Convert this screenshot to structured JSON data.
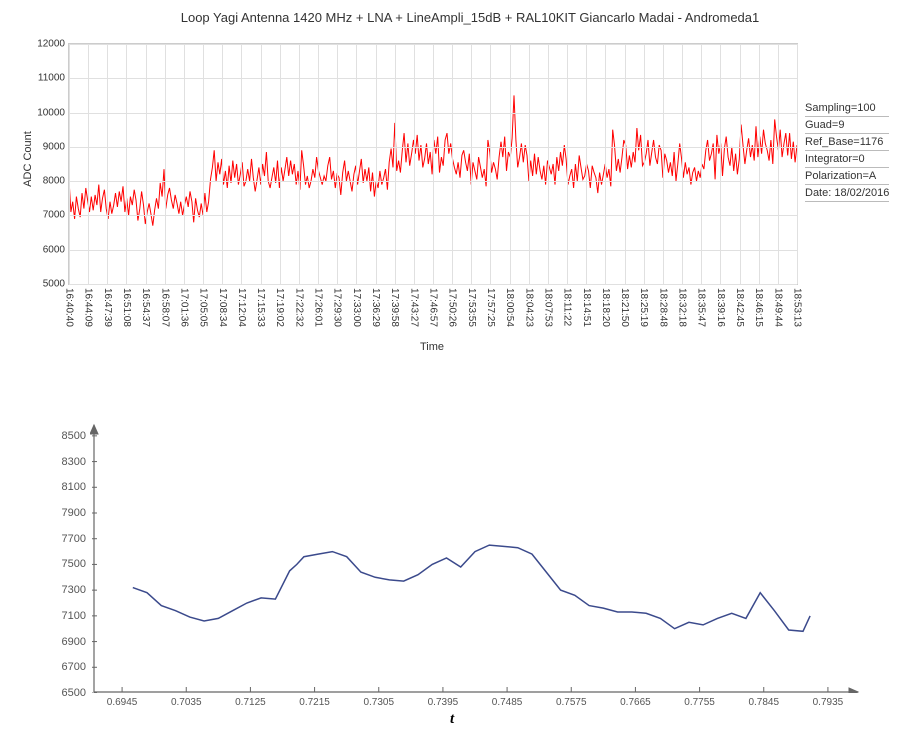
{
  "chart1": {
    "type": "line",
    "title": "Loop Yagi Antenna 1420 MHz + LNA + LineAmpli_15dB  + RAL10KIT  Giancarlo Madai - Andromeda1",
    "ylabel": "ADC Count",
    "xlabel": "Time",
    "ylim": [
      5000,
      12000
    ],
    "yticks": [
      5000,
      6000,
      7000,
      8000,
      9000,
      10000,
      11000,
      12000
    ],
    "xticks": [
      "16:40:40",
      "16:44:09",
      "16:47:39",
      "16:51:08",
      "16:54:37",
      "16:58:07",
      "17:01:36",
      "17:05:05",
      "17:08:34",
      "17:12:04",
      "17:15:33",
      "17:19:02",
      "17:22:32",
      "17:26:01",
      "17:29:30",
      "17:33:00",
      "17:36:29",
      "17:39:58",
      "17:43:27",
      "17:46:57",
      "17:50:26",
      "17:53:55",
      "17:57:25",
      "18:00:54",
      "18:04:23",
      "18:07:53",
      "18:11:22",
      "18:14:51",
      "18:18:20",
      "18:21:50",
      "18:25:19",
      "18:28:48",
      "18:32:18",
      "18:35:47",
      "18:39:16",
      "18:42:45",
      "18:46:15",
      "18:49:44",
      "18:53:13"
    ],
    "line_color": "#ff0000",
    "line_width": 1,
    "plot_bg": "#ffffff",
    "grid_color": "#e0e0e0",
    "values": [
      8050,
      7100,
      7400,
      6900,
      7550,
      7200,
      6950,
      7650,
      7200,
      7800,
      7450,
      7100,
      7550,
      7150,
      7600,
      7300,
      7900,
      7100,
      7500,
      7750,
      7200,
      6900,
      7400,
      7050,
      7300,
      7650,
      7250,
      7700,
      7400,
      7850,
      7100,
      7500,
      7000,
      7550,
      7300,
      7750,
      7450,
      6850,
      7200,
      7700,
      7300,
      6750,
      7100,
      7350,
      7050,
      6700,
      7150,
      7500,
      7200,
      7950,
      7550,
      8350,
      7200,
      7600,
      7800,
      7450,
      7200,
      7600,
      7350,
      7050,
      7400,
      7000,
      7300,
      7550,
      7250,
      7700,
      7400,
      6800,
      7500,
      7150,
      6950,
      7350,
      7000,
      7650,
      7100,
      7400,
      8050,
      8400,
      8900,
      8000,
      8550,
      8200,
      8650,
      7900,
      8300,
      7800,
      8450,
      7950,
      8600,
      8100,
      8500,
      7900,
      8200,
      8550,
      7850,
      8000,
      8350,
      8000,
      8650,
      8100,
      7700,
      8050,
      8400,
      7900,
      8500,
      8150,
      8850,
      8000,
      7800,
      8100,
      8400,
      7950,
      8600,
      7800,
      8400,
      8000,
      8350,
      8700,
      8150,
      8600,
      8200,
      8500,
      7900,
      8300,
      7750,
      8900,
      8450,
      7900,
      8150,
      7800,
      8000,
      8350,
      8100,
      8700,
      8300,
      8100,
      7900,
      8150,
      8000,
      8450,
      8700,
      8050,
      8300,
      7800,
      8200,
      8100,
      7600,
      8250,
      8600,
      8000,
      8300,
      8000,
      7700,
      8200,
      8450,
      7900,
      8300,
      8650,
      7950,
      8350,
      8000,
      8400,
      7700,
      8250,
      7550,
      8000,
      7800,
      8300,
      7900,
      8100,
      8350,
      7750,
      8550,
      8950,
      8400,
      9700,
      8300,
      8600,
      8250,
      8900,
      9400,
      8550,
      9100,
      8450,
      8800,
      9200,
      8800,
      9350,
      8600,
      9050,
      8400,
      8650,
      9100,
      8500,
      8850,
      8200,
      9200,
      8800,
      9300,
      8250,
      8700,
      8450,
      9200,
      9400,
      8800,
      9100,
      8650,
      8400,
      8200,
      8550,
      8100,
      8750,
      8900,
      8550,
      8300,
      8800,
      7900,
      8550,
      8300,
      8050,
      8700,
      8400,
      8100,
      8350,
      7850,
      9200,
      8850,
      8250,
      8550,
      8350,
      8050,
      8700,
      9150,
      8700,
      9300,
      8300,
      8850,
      8700,
      9250,
      10500,
      9200,
      8400,
      8700,
      9100,
      8550,
      9050,
      8750,
      8000,
      8600,
      8150,
      8800,
      8200,
      8700,
      8300,
      8050,
      8450,
      7900,
      8600,
      8400,
      8200,
      8500,
      7900,
      8700,
      8300,
      8850,
      8450,
      9050,
      8650,
      7900,
      8150,
      8350,
      7800,
      8500,
      8000,
      8750,
      8400,
      8050,
      8150,
      8500,
      8300,
      7800,
      8450,
      8250,
      8100,
      7650,
      8250,
      7900,
      8200,
      8500,
      8100,
      8350,
      7850,
      9500,
      9050,
      8300,
      8650,
      8250,
      8700,
      9200,
      9050,
      8350,
      8750,
      8400,
      8850,
      8550,
      9550,
      8900,
      9350,
      8450,
      8550,
      8800,
      9200,
      8450,
      8850,
      9200,
      8700,
      8500,
      9050,
      8900,
      8100,
      8800,
      8600,
      8250,
      8550,
      8150,
      8850,
      8000,
      8500,
      9100,
      8650,
      8100,
      8550,
      8200,
      8400,
      7900,
      8250,
      8400,
      8000,
      8300,
      8100,
      8500,
      8350,
      8900,
      9200,
      8600,
      8800,
      9100,
      8050,
      9350,
      8800,
      9100,
      8150,
      8950,
      9300,
      8700,
      8450,
      9000,
      8300,
      8800,
      8200,
      8650,
      9650,
      9050,
      8500,
      8900,
      9250,
      8700,
      9050,
      8600,
      9600,
      8700,
      9300,
      8800,
      9500,
      9100,
      8900,
      8600,
      9200,
      8500,
      9800,
      9300,
      8900,
      9500,
      8700,
      9100,
      9400,
      8750,
      9400,
      8650,
      9150,
      8550,
      9050
    ]
  },
  "info_panel": {
    "rows": [
      "Sampling=100",
      "Guad=9",
      "Ref_Base=1176",
      "Integrator=0",
      "Polarization=A",
      "Date: 18/02/2016"
    ]
  },
  "chart2": {
    "type": "line",
    "xlabel": "t",
    "ylim": [
      6500,
      8600
    ],
    "yticks": [
      6500,
      6700,
      6900,
      7100,
      7300,
      7500,
      7700,
      7900,
      8100,
      8300,
      8500
    ],
    "xlim": [
      0.69,
      0.798
    ],
    "xticks": [
      0.6945,
      0.7035,
      0.7125,
      0.7215,
      0.7305,
      0.7395,
      0.7485,
      0.7575,
      0.7665,
      0.7755,
      0.7845,
      0.7935
    ],
    "line_color": "#3b4a8c",
    "line_width": 1.5,
    "plot_bg": "#ffffff",
    "points": [
      [
        0.696,
        7320
      ],
      [
        0.698,
        7280
      ],
      [
        0.7,
        7180
      ],
      [
        0.702,
        7140
      ],
      [
        0.704,
        7090
      ],
      [
        0.706,
        7060
      ],
      [
        0.708,
        7080
      ],
      [
        0.71,
        7140
      ],
      [
        0.712,
        7200
      ],
      [
        0.714,
        7240
      ],
      [
        0.716,
        7230
      ],
      [
        0.718,
        7450
      ],
      [
        0.719,
        7500
      ],
      [
        0.72,
        7560
      ],
      [
        0.722,
        7580
      ],
      [
        0.724,
        7600
      ],
      [
        0.726,
        7560
      ],
      [
        0.728,
        7440
      ],
      [
        0.73,
        7400
      ],
      [
        0.732,
        7380
      ],
      [
        0.734,
        7370
      ],
      [
        0.736,
        7420
      ],
      [
        0.738,
        7500
      ],
      [
        0.74,
        7550
      ],
      [
        0.742,
        7480
      ],
      [
        0.744,
        7600
      ],
      [
        0.746,
        7650
      ],
      [
        0.748,
        7640
      ],
      [
        0.75,
        7630
      ],
      [
        0.752,
        7580
      ],
      [
        0.754,
        7440
      ],
      [
        0.756,
        7300
      ],
      [
        0.758,
        7260
      ],
      [
        0.76,
        7180
      ],
      [
        0.762,
        7160
      ],
      [
        0.764,
        7130
      ],
      [
        0.766,
        7130
      ],
      [
        0.768,
        7120
      ],
      [
        0.77,
        7080
      ],
      [
        0.772,
        7000
      ],
      [
        0.774,
        7050
      ],
      [
        0.776,
        7030
      ],
      [
        0.778,
        7080
      ],
      [
        0.78,
        7120
      ],
      [
        0.782,
        7080
      ],
      [
        0.784,
        7280
      ],
      [
        0.786,
        7140
      ],
      [
        0.788,
        6990
      ],
      [
        0.79,
        6980
      ],
      [
        0.791,
        7100
      ]
    ]
  }
}
